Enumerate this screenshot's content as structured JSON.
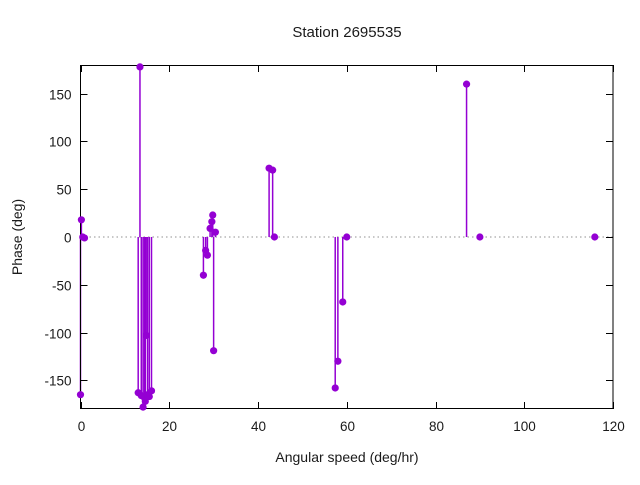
{
  "title": "Station 2695535",
  "chart_data": {
    "type": "scatter",
    "style": "impulses-with-points",
    "title": "Station 2695535",
    "xlabel": "Angular speed (deg/hr)",
    "ylabel": "Phase (deg)",
    "xlim": [
      0,
      120
    ],
    "ylim": [
      -180,
      180
    ],
    "xticks": [
      0,
      20,
      40,
      60,
      80,
      100,
      120
    ],
    "yticks": [
      -150,
      -100,
      -50,
      0,
      50,
      100,
      150
    ],
    "zero_line": true,
    "grid": false,
    "legend": "none",
    "point_color": "#9400D3",
    "zero_line_color": "#909090",
    "border_color": "#000000",
    "points": [
      [
        0.0,
        -165
      ],
      [
        0.2,
        18
      ],
      [
        0.5,
        0
      ],
      [
        0.9,
        -1
      ],
      [
        13.0,
        -163
      ],
      [
        13.4,
        178
      ],
      [
        13.7,
        -166
      ],
      [
        14.1,
        -178
      ],
      [
        14.4,
        -168
      ],
      [
        14.6,
        -172
      ],
      [
        14.8,
        -103
      ],
      [
        15.1,
        -165
      ],
      [
        15.5,
        -167
      ],
      [
        16.0,
        -161
      ],
      [
        27.7,
        -40
      ],
      [
        28.2,
        -14
      ],
      [
        28.6,
        -19
      ],
      [
        29.2,
        9
      ],
      [
        29.6,
        16
      ],
      [
        29.8,
        23
      ],
      [
        30.0,
        -119
      ],
      [
        30.4,
        5
      ],
      [
        42.5,
        72
      ],
      [
        43.3,
        70
      ],
      [
        43.7,
        0
      ],
      [
        57.4,
        -158
      ],
      [
        58.0,
        -130
      ],
      [
        59.1,
        -68
      ],
      [
        60.0,
        0
      ],
      [
        87.0,
        160
      ],
      [
        90.0,
        0
      ],
      [
        115.9,
        0
      ]
    ]
  }
}
